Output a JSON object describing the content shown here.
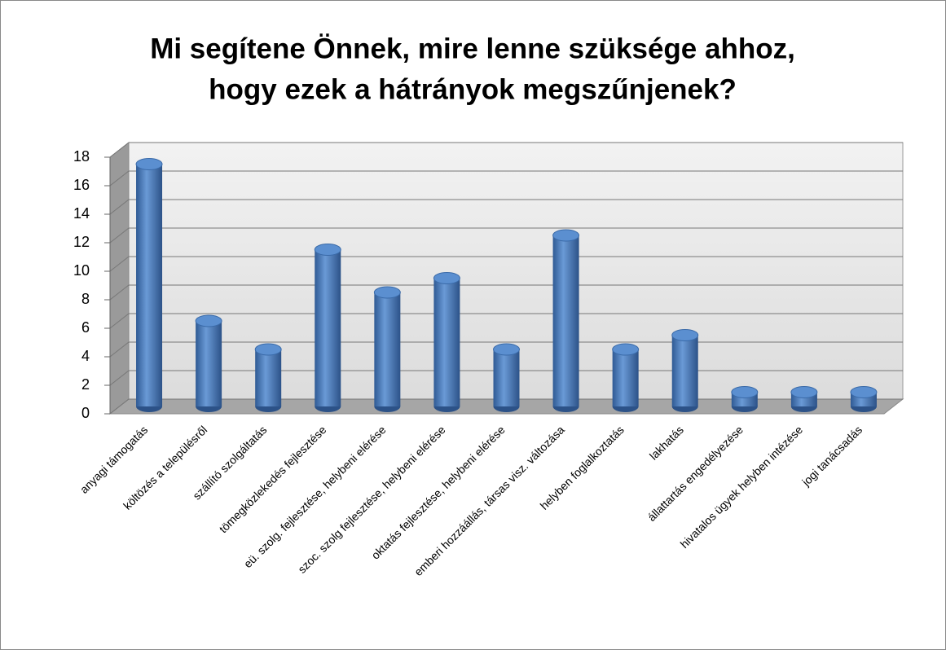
{
  "chart_data": {
    "type": "bar3d",
    "title": [
      "Mi segítene Önnek, mire lenne szüksége ahhoz,",
      "hogy ezek a hátrányok megszűnjenek?"
    ],
    "categories": [
      "anyagi támogatás",
      "költözés a településről",
      "szállító szolgáltatás",
      "tömegközlekedés fejlesztése",
      "eü. szolg. fejlesztése, helybeni elérése",
      "szoc. szolg fejlesztése, helybeni elérése",
      "oktatás fejlesztése, helybeni elérése",
      "emberi hozzáállás, társas visz. változása",
      "helyben foglalkoztatás",
      "lakhatás",
      "állattartás engedélyezése",
      "hivatalos ügyek helyben intézése",
      "jogi tanácsadás"
    ],
    "values": [
      17,
      6,
      4,
      11,
      8,
      9,
      4,
      12,
      4,
      5,
      1,
      1,
      1
    ],
    "color": "#4a7ebb",
    "ylim": [
      0,
      18
    ],
    "yticks": [
      0,
      2,
      4,
      6,
      8,
      10,
      12,
      14,
      16,
      18
    ],
    "grid": true
  }
}
